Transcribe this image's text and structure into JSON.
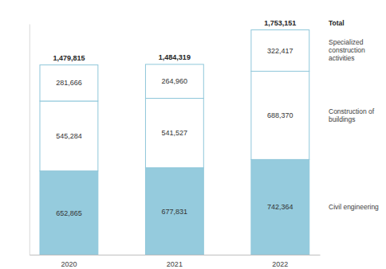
{
  "chart_data": {
    "type": "bar",
    "stacked": true,
    "data_labels": true,
    "tick_labels": "x",
    "categories": [
      "2020",
      "2021",
      "2022"
    ],
    "series": [
      {
        "name": "Civil engineering",
        "color": "#95cbdd",
        "values": [
          652865,
          677831,
          742364
        ],
        "value_labels": [
          "652,865",
          "677,831",
          "742,364"
        ]
      },
      {
        "name": "Construction of buildings",
        "color": "#ffffff",
        "values": [
          545284,
          541527,
          688370
        ],
        "value_labels": [
          "545,284",
          "541,527",
          "688,370"
        ]
      },
      {
        "name": "Specialized construction activities",
        "color": "#ffffff",
        "values": [
          281666,
          264960,
          322417
        ],
        "value_labels": [
          "281,666",
          "264,960",
          "322,417"
        ]
      }
    ],
    "totals": {
      "name": "Total",
      "values": [
        1479815,
        1484319,
        1753151
      ],
      "value_labels": [
        "1,479,815",
        "1,484,319",
        "1,753,151"
      ]
    },
    "ylim": [
      0,
      1800000
    ],
    "yticks": []
  }
}
